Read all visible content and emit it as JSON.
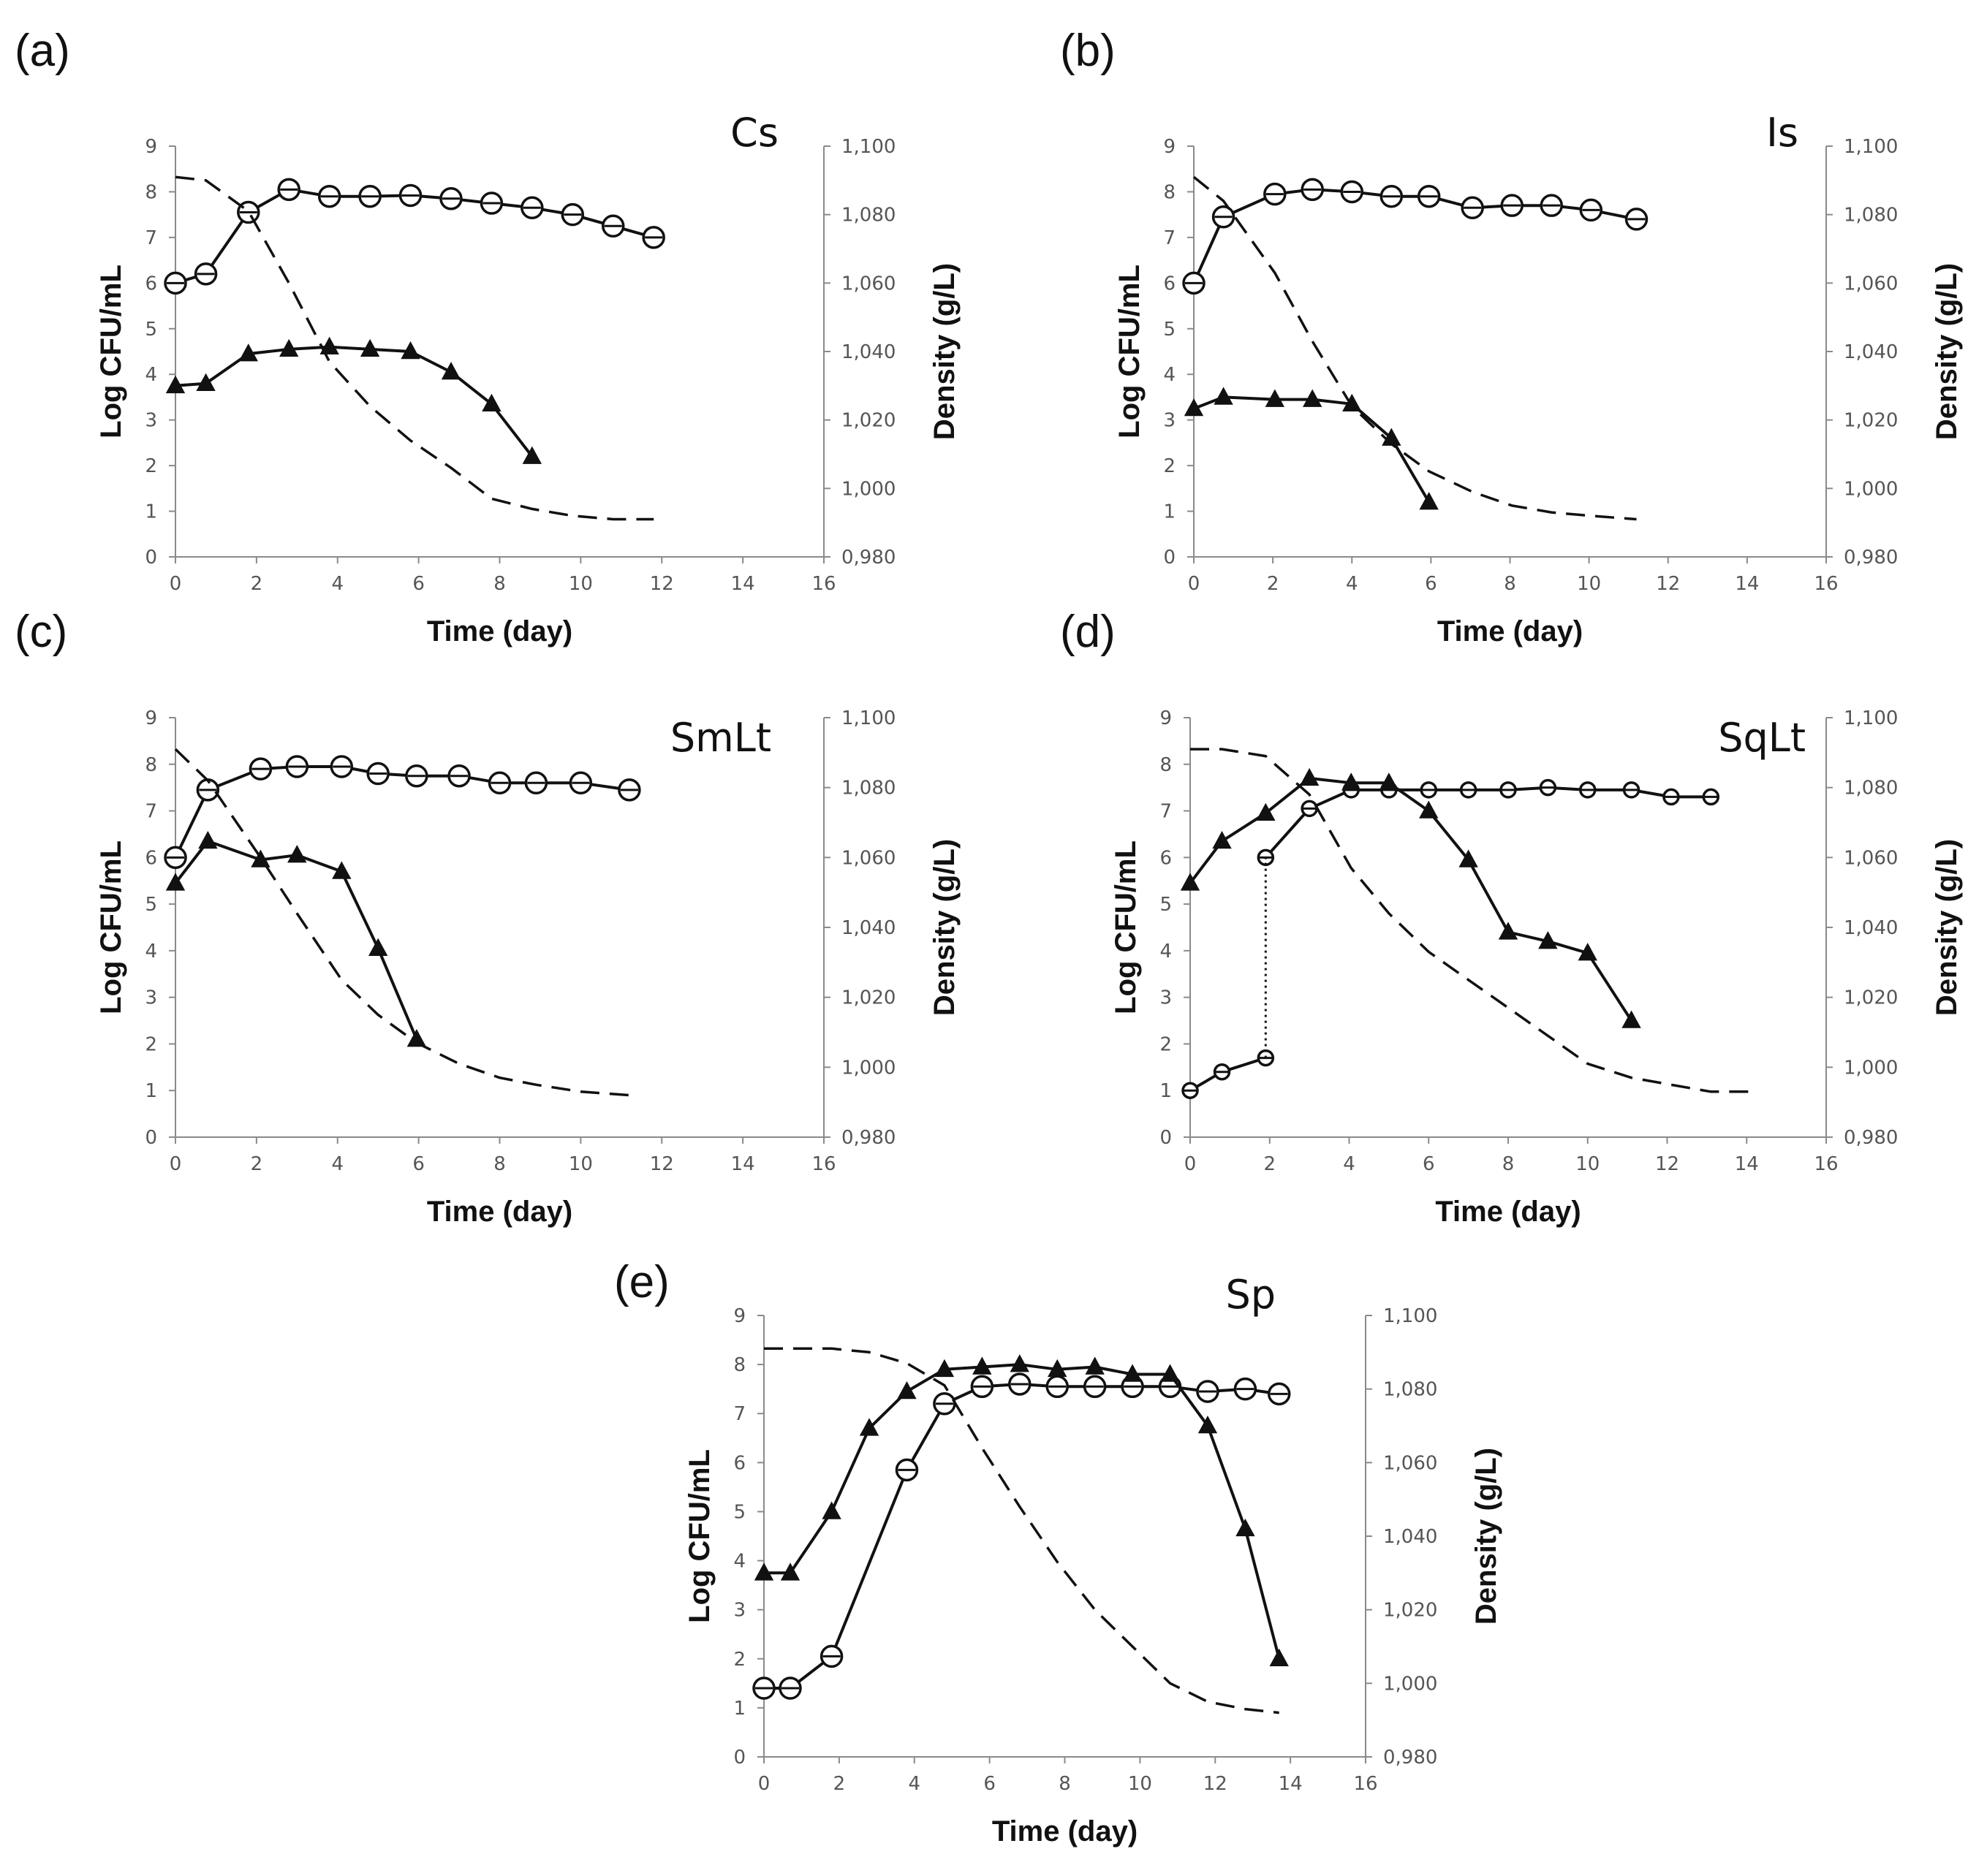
{
  "figure": {
    "background": "#ffffff",
    "line_color": "#111111",
    "axis_color": "#8a8a8a"
  },
  "chart_data": [
    {
      "type": "line",
      "panel_label": "(a)",
      "title": "Cs",
      "xlabel": "Time (day)",
      "ylabel_left": "Log CFU/mL",
      "ylabel_right": "Density (g/L)",
      "xlim": [
        0,
        16
      ],
      "ylim_left": [
        0,
        9
      ],
      "ylim_right": [
        0.98,
        1.1
      ],
      "x_ticks": [
        "0",
        "2",
        "4",
        "6",
        "8",
        "10",
        "12",
        "14",
        "16"
      ],
      "y_left_ticks": [
        "0",
        "1",
        "2",
        "3",
        "4",
        "5",
        "6",
        "7",
        "8",
        "9"
      ],
      "y_right_ticks": [
        "0,980",
        "1,000",
        "1,020",
        "1,040",
        "1,060",
        "1,080",
        "1,100"
      ],
      "grid": false,
      "series": [
        {
          "marker": "circle",
          "axis": "left",
          "x": [
            0,
            0.75,
            1.8,
            2.8,
            3.8,
            4.8,
            5.8,
            6.8,
            7.8,
            8.8,
            9.8,
            10.8,
            11.8
          ],
          "values": [
            6.0,
            6.2,
            7.55,
            8.05,
            7.9,
            7.9,
            7.92,
            7.85,
            7.75,
            7.65,
            7.5,
            7.25,
            7.0
          ]
        },
        {
          "marker": "triangle",
          "axis": "left",
          "x": [
            0,
            0.75,
            1.8,
            2.8,
            3.8,
            4.8,
            5.8,
            6.8,
            7.8,
            8.8
          ],
          "values": [
            3.75,
            3.8,
            4.45,
            4.55,
            4.6,
            4.55,
            4.5,
            4.05,
            3.35,
            2.2
          ]
        },
        {
          "line": "dashed",
          "axis": "right",
          "x": [
            0,
            0.75,
            1.8,
            2.8,
            3.8,
            4.8,
            5.8,
            6.8,
            7.8,
            8.8,
            9.8,
            10.8,
            11.8
          ],
          "values": [
            1.091,
            1.09,
            1.081,
            1.06,
            1.037,
            1.024,
            1.014,
            1.006,
            0.997,
            0.994,
            0.992,
            0.991,
            0.991
          ]
        }
      ]
    },
    {
      "type": "line",
      "panel_label": "(b)",
      "title": "Is",
      "xlabel": "Time (day)",
      "ylabel_left": "Log CFU/mL",
      "ylabel_right": "Density (g/L)",
      "xlim": [
        0,
        16
      ],
      "ylim_left": [
        0,
        9
      ],
      "ylim_right": [
        0.98,
        1.1
      ],
      "x_ticks": [
        "0",
        "2",
        "4",
        "6",
        "8",
        "10",
        "12",
        "14",
        "16"
      ],
      "y_left_ticks": [
        "0",
        "1",
        "2",
        "3",
        "4",
        "5",
        "6",
        "7",
        "8",
        "9"
      ],
      "y_right_ticks": [
        "0,980",
        "1,000",
        "1,020",
        "1,040",
        "1,060",
        "1,080",
        "1,100"
      ],
      "grid": false,
      "series": [
        {
          "marker": "circle",
          "axis": "left",
          "x": [
            0,
            0.75,
            2.05,
            3.0,
            4.0,
            5.0,
            5.95,
            7.05,
            8.05,
            9.05,
            10.05,
            11.2
          ],
          "values": [
            6.0,
            7.45,
            7.95,
            8.05,
            8.0,
            7.9,
            7.9,
            7.65,
            7.7,
            7.7,
            7.6,
            7.4
          ]
        },
        {
          "marker": "triangle",
          "axis": "left",
          "x": [
            0,
            0.75,
            2.05,
            3.0,
            4.0,
            5.0,
            5.95
          ],
          "values": [
            3.25,
            3.5,
            3.45,
            3.45,
            3.35,
            2.6,
            1.2
          ]
        },
        {
          "line": "dashed",
          "axis": "right",
          "x": [
            0,
            0.75,
            2.05,
            3.0,
            4.0,
            5.0,
            5.95,
            7.05,
            8.05,
            9.05,
            10.05,
            11.2
          ],
          "values": [
            1.091,
            1.084,
            1.063,
            1.043,
            1.024,
            1.013,
            1.005,
            0.999,
            0.995,
            0.993,
            0.992,
            0.991
          ]
        }
      ]
    },
    {
      "type": "line",
      "panel_label": "(c)",
      "title": "SmLt",
      "xlabel": "Time (day)",
      "ylabel_left": "Log CFU/mL",
      "ylabel_right": "Density (g/L)",
      "xlim": [
        0,
        16
      ],
      "ylim_left": [
        0,
        9
      ],
      "ylim_right": [
        0.98,
        1.1
      ],
      "x_ticks": [
        "0",
        "2",
        "4",
        "6",
        "8",
        "10",
        "12",
        "14",
        "16"
      ],
      "y_left_ticks": [
        "0",
        "1",
        "2",
        "3",
        "4",
        "5",
        "6",
        "7",
        "8",
        "9"
      ],
      "y_right_ticks": [
        "0,980",
        "1,000",
        "1,020",
        "1,040",
        "1,060",
        "1,080",
        "1,100"
      ],
      "grid": false,
      "series": [
        {
          "marker": "circle",
          "axis": "left",
          "x": [
            0,
            0.8,
            2.1,
            3.0,
            4.1,
            5.0,
            5.95,
            7.0,
            8.0,
            8.9,
            10.0,
            11.2
          ],
          "values": [
            6.0,
            7.45,
            7.9,
            7.95,
            7.95,
            7.8,
            7.75,
            7.75,
            7.6,
            7.6,
            7.6,
            7.45
          ]
        },
        {
          "marker": "triangle",
          "axis": "left",
          "x": [
            0,
            0.8,
            2.1,
            3.0,
            4.1,
            5.0,
            5.95
          ],
          "values": [
            5.45,
            6.35,
            5.95,
            6.05,
            5.7,
            4.05,
            2.1
          ]
        },
        {
          "line": "dashed",
          "axis": "right",
          "x": [
            0,
            0.8,
            2.1,
            3.0,
            4.1,
            5.0,
            5.95,
            7.0,
            8.0,
            8.9,
            10.0,
            11.2
          ],
          "values": [
            1.091,
            1.082,
            1.06,
            1.044,
            1.025,
            1.015,
            1.007,
            1.001,
            0.997,
            0.995,
            0.993,
            0.992
          ]
        }
      ]
    },
    {
      "type": "line",
      "panel_label": "(d)",
      "title": "SqLt",
      "xlabel": "Time (day)",
      "ylabel_left": "Log CFU/mL",
      "ylabel_right": "Density (g/L)",
      "xlim": [
        0,
        16
      ],
      "ylim_left": [
        0,
        9
      ],
      "ylim_right": [
        0.98,
        1.1
      ],
      "x_ticks": [
        "0",
        "2",
        "4",
        "6",
        "8",
        "10",
        "12",
        "14",
        "16"
      ],
      "y_left_ticks": [
        "0",
        "1",
        "2",
        "3",
        "4",
        "5",
        "6",
        "7",
        "8",
        "9"
      ],
      "y_right_ticks": [
        "0,980",
        "1,000",
        "1,020",
        "1,040",
        "1,060",
        "1,080",
        "1,100"
      ],
      "grid": false,
      "series": [
        {
          "marker": "small-circle",
          "axis": "left",
          "x": [
            0,
            0.8,
            1.9
          ],
          "values": [
            1.0,
            1.4,
            1.7
          ]
        },
        {
          "marker": "small-circle",
          "axis": "left",
          "x": [
            1.9,
            3.0,
            4.05,
            5.0,
            6.0,
            7.0,
            8.0,
            9.0,
            10.0,
            11.1,
            12.1,
            13.1
          ],
          "values": [
            6.0,
            7.05,
            7.45,
            7.45,
            7.45,
            7.45,
            7.45,
            7.5,
            7.45,
            7.45,
            7.3,
            7.3
          ]
        },
        {
          "line": "dotted",
          "axis": "left",
          "x": [
            1.9,
            1.9
          ],
          "values": [
            1.7,
            6.0
          ]
        },
        {
          "marker": "triangle",
          "axis": "left",
          "x": [
            0,
            0.8,
            1.9,
            3.0,
            4.05,
            5.0,
            6.0,
            7.0,
            8.0,
            9.0,
            10.0,
            11.1
          ],
          "values": [
            5.45,
            6.35,
            6.95,
            7.7,
            7.6,
            7.6,
            7.0,
            5.95,
            4.4,
            4.2,
            3.95,
            2.5
          ]
        },
        {
          "line": "dashed",
          "axis": "right",
          "x": [
            0,
            0.8,
            1.9,
            3.0,
            4.05,
            5.0,
            6.0,
            7.0,
            8.0,
            9.0,
            10.0,
            11.1,
            12.1,
            13.1,
            14.2
          ],
          "values": [
            1.091,
            1.091,
            1.089,
            1.078,
            1.057,
            1.044,
            1.033,
            1.025,
            1.017,
            1.009,
            1.001,
            0.997,
            0.995,
            0.993,
            0.993
          ]
        }
      ]
    },
    {
      "type": "line",
      "panel_label": "(e)",
      "title": "Sp",
      "xlabel": "Time (day)",
      "ylabel_left": "Log CFU/mL",
      "ylabel_right": "Density (g/L)",
      "xlim": [
        0,
        16
      ],
      "ylim_left": [
        0,
        9
      ],
      "ylim_right": [
        0.98,
        1.1
      ],
      "x_ticks": [
        "0",
        "2",
        "4",
        "6",
        "8",
        "10",
        "12",
        "14",
        "16"
      ],
      "y_left_ticks": [
        "0",
        "1",
        "2",
        "3",
        "4",
        "5",
        "6",
        "7",
        "8",
        "9"
      ],
      "y_right_ticks": [
        "0,980",
        "1,000",
        "1,020",
        "1,040",
        "1,060",
        "1,080",
        "1,100"
      ],
      "grid": false,
      "series": [
        {
          "marker": "circle",
          "axis": "left",
          "x": [
            0,
            0.7,
            1.8,
            3.8,
            4.8,
            5.8,
            6.8,
            7.8,
            8.8,
            9.8,
            10.8,
            11.8,
            12.8,
            13.7
          ],
          "values": [
            1.4,
            1.4,
            2.05,
            5.85,
            7.2,
            7.55,
            7.6,
            7.55,
            7.55,
            7.55,
            7.55,
            7.45,
            7.5,
            7.4
          ]
        },
        {
          "marker": "triangle",
          "axis": "left",
          "x": [
            0,
            0.7,
            1.8,
            2.8,
            3.8,
            4.8,
            5.8,
            6.8,
            7.8,
            8.8,
            9.8,
            10.8,
            11.8,
            12.8,
            13.7
          ],
          "values": [
            3.75,
            3.75,
            5.0,
            6.7,
            7.45,
            7.9,
            7.95,
            8.0,
            7.9,
            7.95,
            7.8,
            7.8,
            6.75,
            4.65,
            2.0
          ]
        },
        {
          "line": "dashed",
          "axis": "right",
          "x": [
            0,
            1.8,
            2.8,
            3.8,
            4.8,
            5.8,
            6.8,
            7.8,
            8.8,
            9.8,
            10.8,
            11.8,
            12.8,
            13.7
          ],
          "values": [
            1.091,
            1.091,
            1.09,
            1.087,
            1.081,
            1.064,
            1.048,
            1.033,
            1.02,
            1.01,
            1.0,
            0.995,
            0.993,
            0.992
          ]
        }
      ]
    }
  ]
}
